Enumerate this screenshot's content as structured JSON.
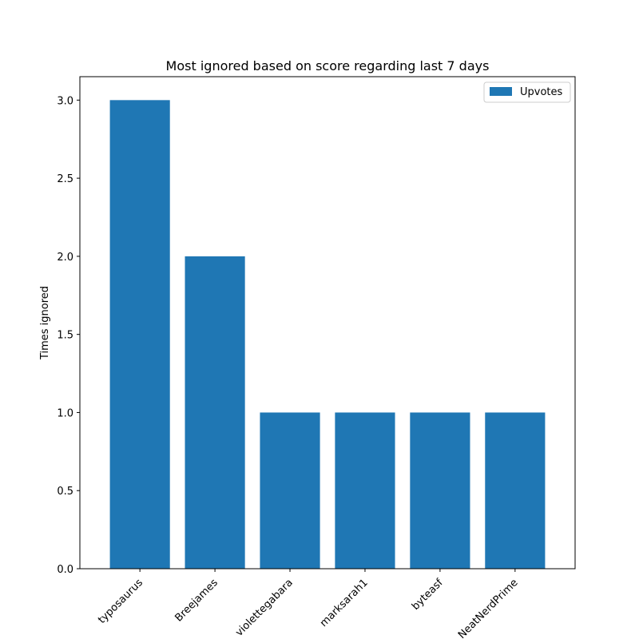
{
  "chart_data": {
    "type": "bar",
    "title": "Most ignored based on score regarding last 7 days",
    "xlabel": "",
    "ylabel": "Times ignored",
    "categories": [
      "typosaurus",
      "Breejames",
      "violettegabara",
      "marksarah1",
      "byteasf",
      "NeatNerdPrime"
    ],
    "series": [
      {
        "name": "Upvotes",
        "values": [
          3,
          2,
          1,
          1,
          1,
          1
        ],
        "color": "#1f77b4"
      }
    ],
    "ylim": [
      0,
      3.15
    ],
    "yticks": [
      0.0,
      0.5,
      1.0,
      1.5,
      2.0,
      2.5,
      3.0
    ],
    "ytick_labels": [
      "0.0",
      "0.5",
      "1.0",
      "1.5",
      "2.0",
      "2.5",
      "3.0"
    ],
    "grid": false,
    "legend_position": "top-right"
  }
}
